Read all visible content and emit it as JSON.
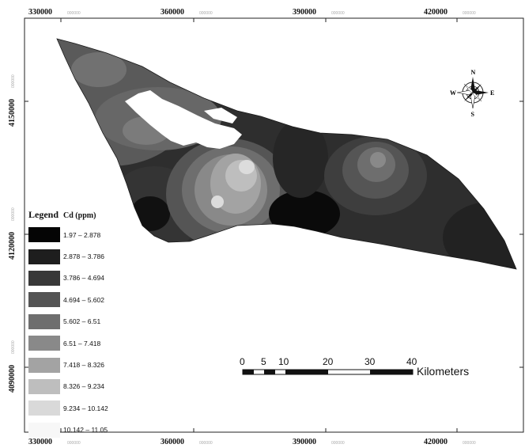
{
  "map": {
    "axis_labels": {
      "top": [
        "330000",
        "360000",
        "390000",
        "420000"
      ],
      "bottom": [
        "330000",
        "360000",
        "390000",
        "420000"
      ],
      "left": [
        "4150000",
        "4120000",
        "4090000"
      ],
      "label_suffix": "000000"
    },
    "compass": {
      "n": "N",
      "s": "S",
      "e": "E",
      "w": "W",
      "icon": "compass-rose-icon"
    },
    "scalebar": {
      "ticks": [
        "0",
        "5",
        "10",
        "20",
        "30",
        "40"
      ],
      "unit": "Kilometers"
    }
  },
  "legend": {
    "title": "Legend",
    "unit": "Cd (ppm)",
    "classes": [
      {
        "label": "1.97 – 2.878",
        "color": "#050505"
      },
      {
        "label": "2.878 – 3.786",
        "color": "#1e1e1e"
      },
      {
        "label": "3.786 – 4.694",
        "color": "#383838"
      },
      {
        "label": "4.694 – 5.602",
        "color": "#545454"
      },
      {
        "label": "5.602 – 6.51",
        "color": "#6e6e6e"
      },
      {
        "label": "6.51 – 7.418",
        "color": "#898989"
      },
      {
        "label": "7.418 – 8.326",
        "color": "#a3a3a3"
      },
      {
        "label": "8.326 – 9.234",
        "color": "#bebebe"
      },
      {
        "label": "9.234 – 10.142",
        "color": "#d9d9d9"
      },
      {
        "label": "10.142 – 11.05",
        "color": "#f7f7f7"
      }
    ]
  }
}
